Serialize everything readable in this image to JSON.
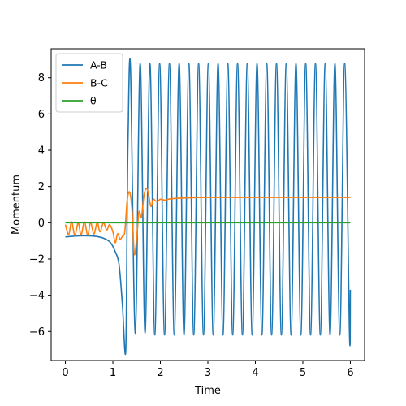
{
  "chart_data": {
    "type": "line",
    "title": "",
    "xlabel": "Time",
    "ylabel": "Momentum",
    "xlim": [
      -0.3,
      6.3
    ],
    "ylim": [
      -7.6,
      9.6
    ],
    "xticks": [
      0,
      1,
      2,
      3,
      4,
      5,
      6
    ],
    "yticks": [
      -6,
      -4,
      -2,
      0,
      2,
      4,
      6,
      8
    ],
    "grid": false,
    "legend_position": "top-left",
    "series": [
      {
        "name": "A-B",
        "color": "#1f77b4",
        "description": "Near -0.75 until ~0.9, dips to about -7.1 near t=1.25, then oscillates between about -6.2 and 8.8 with period ~0.2 until t=6, ending near -3.7",
        "x": [
          0.0,
          0.3,
          0.6,
          0.8,
          0.95,
          1.05,
          1.13,
          1.2,
          1.27,
          1.3,
          1.32
        ],
        "y": [
          -0.78,
          -0.72,
          -0.74,
          -0.85,
          -1.1,
          -1.6,
          -2.3,
          -4.5,
          -7.1,
          0.5,
          4.8
        ]
      },
      {
        "name": "B-C",
        "color": "#ff7f0e",
        "x": [
          0.0,
          0.07,
          0.13,
          0.2,
          0.27,
          0.33,
          0.4,
          0.47,
          0.53,
          0.6,
          0.67,
          0.73,
          0.8,
          0.87,
          0.93,
          1.0,
          1.05,
          1.1,
          1.15,
          1.2,
          1.25,
          1.3,
          1.35,
          1.4,
          1.45,
          1.5,
          1.55,
          1.6,
          1.65,
          1.7,
          1.75,
          1.8,
          1.85,
          1.9,
          1.95,
          2.0,
          2.1,
          2.2,
          2.4,
          2.6,
          3.0,
          4.0,
          5.0,
          6.0
        ],
        "y": [
          -0.1,
          -0.65,
          0.05,
          -0.7,
          0.0,
          -0.68,
          0.05,
          -0.68,
          0.02,
          -0.62,
          0.02,
          -0.5,
          0.0,
          -0.4,
          -0.1,
          -0.5,
          -1.1,
          -0.6,
          -0.9,
          -0.75,
          -0.5,
          1.2,
          1.7,
          0.8,
          -1.7,
          -0.9,
          0.6,
          0.3,
          1.4,
          1.9,
          1.6,
          0.9,
          1.3,
          1.2,
          1.2,
          1.3,
          1.25,
          1.32,
          1.36,
          1.38,
          1.4,
          1.4,
          1.4,
          1.4
        ]
      },
      {
        "name": "θ",
        "color": "#2ca02c",
        "x": [
          0,
          6
        ],
        "y": [
          0,
          0
        ]
      }
    ]
  }
}
